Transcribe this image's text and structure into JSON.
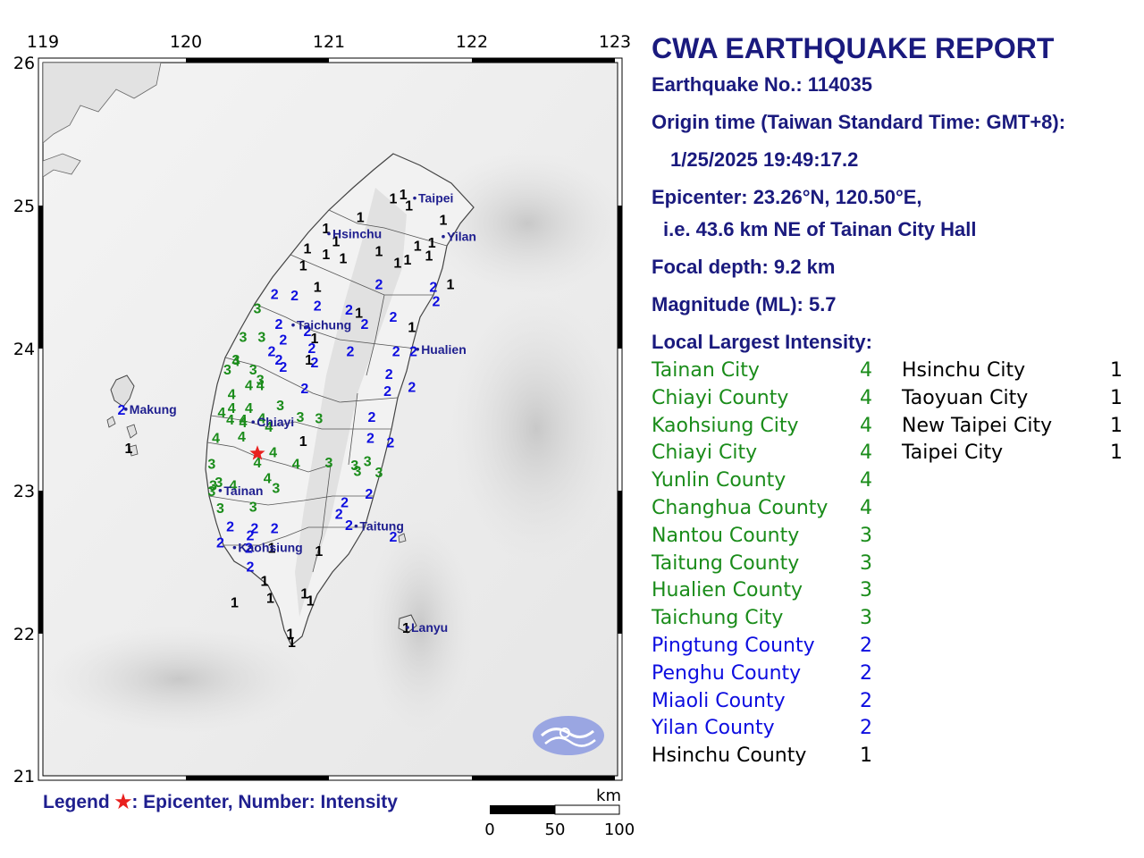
{
  "map": {
    "lon_labels": [
      "119",
      "120",
      "121",
      "122",
      "123"
    ],
    "lat_labels": [
      "26",
      "25",
      "24",
      "23",
      "22",
      "21"
    ],
    "cities": [
      {
        "name": "Taipei",
        "lon": 121.6,
        "lat": 25.05
      },
      {
        "name": "Hsinchu",
        "lon": 121.0,
        "lat": 24.8
      },
      {
        "name": "Yilan",
        "lon": 121.8,
        "lat": 24.78
      },
      {
        "name": "Taichung",
        "lon": 120.75,
        "lat": 24.16
      },
      {
        "name": "Hualien",
        "lon": 121.62,
        "lat": 23.99
      },
      {
        "name": "Makung",
        "lon": 119.58,
        "lat": 23.57
      },
      {
        "name": "Chiayi",
        "lon": 120.47,
        "lat": 23.48
      },
      {
        "name": "Tainan",
        "lon": 120.24,
        "lat": 23.0
      },
      {
        "name": "Taitung",
        "lon": 121.19,
        "lat": 22.75
      },
      {
        "name": "Kaohsiung",
        "lon": 120.34,
        "lat": 22.6
      },
      {
        "name": "Lanyu",
        "lon": 121.55,
        "lat": 22.04
      }
    ],
    "epicenter": {
      "lon": 120.5,
      "lat": 23.26
    },
    "stations": [
      {
        "v": "1",
        "lon": 121.45,
        "lat": 25.05
      },
      {
        "v": "1",
        "lon": 121.52,
        "lat": 25.08
      },
      {
        "v": "1",
        "lon": 121.56,
        "lat": 25.0
      },
      {
        "v": "1",
        "lon": 121.22,
        "lat": 24.92
      },
      {
        "v": "1",
        "lon": 120.98,
        "lat": 24.84
      },
      {
        "v": "1",
        "lon": 121.05,
        "lat": 24.75
      },
      {
        "v": "1",
        "lon": 121.8,
        "lat": 24.9
      },
      {
        "v": "1",
        "lon": 121.62,
        "lat": 24.72
      },
      {
        "v": "1",
        "lon": 121.72,
        "lat": 24.74
      },
      {
        "v": "1",
        "lon": 120.85,
        "lat": 24.7
      },
      {
        "v": "1",
        "lon": 120.98,
        "lat": 24.66
      },
      {
        "v": "1",
        "lon": 121.1,
        "lat": 24.63
      },
      {
        "v": "1",
        "lon": 121.35,
        "lat": 24.68
      },
      {
        "v": "1",
        "lon": 121.48,
        "lat": 24.6
      },
      {
        "v": "1",
        "lon": 121.55,
        "lat": 24.62
      },
      {
        "v": "1",
        "lon": 121.7,
        "lat": 24.65
      },
      {
        "v": "1",
        "lon": 120.82,
        "lat": 24.58
      },
      {
        "v": "1",
        "lon": 120.92,
        "lat": 24.43
      },
      {
        "v": "1",
        "lon": 121.85,
        "lat": 24.45
      },
      {
        "v": "1",
        "lon": 121.21,
        "lat": 24.25
      },
      {
        "v": "1",
        "lon": 121.58,
        "lat": 24.15
      },
      {
        "v": "1",
        "lon": 120.9,
        "lat": 24.07
      },
      {
        "v": "1",
        "lon": 120.86,
        "lat": 23.92
      },
      {
        "v": "1",
        "lon": 120.82,
        "lat": 23.35
      },
      {
        "v": "1",
        "lon": 120.6,
        "lat": 22.6
      },
      {
        "v": "1",
        "lon": 120.93,
        "lat": 22.58
      },
      {
        "v": "1",
        "lon": 120.55,
        "lat": 22.37
      },
      {
        "v": "1",
        "lon": 120.59,
        "lat": 22.25
      },
      {
        "v": "1",
        "lon": 120.83,
        "lat": 22.28
      },
      {
        "v": "1",
        "lon": 120.87,
        "lat": 22.23
      },
      {
        "v": "1",
        "lon": 120.34,
        "lat": 22.22
      },
      {
        "v": "1",
        "lon": 120.73,
        "lat": 22.0
      },
      {
        "v": "1",
        "lon": 120.74,
        "lat": 21.94
      },
      {
        "v": "1",
        "lon": 121.54,
        "lat": 22.04
      },
      {
        "v": "1",
        "lon": 119.6,
        "lat": 23.3
      },
      {
        "v": "2",
        "lon": 121.35,
        "lat": 24.45
      },
      {
        "v": "2",
        "lon": 121.73,
        "lat": 24.43
      },
      {
        "v": "2",
        "lon": 121.75,
        "lat": 24.33
      },
      {
        "v": "2",
        "lon": 120.62,
        "lat": 24.38
      },
      {
        "v": "2",
        "lon": 120.76,
        "lat": 24.37
      },
      {
        "v": "2",
        "lon": 120.92,
        "lat": 24.3
      },
      {
        "v": "2",
        "lon": 121.14,
        "lat": 24.27
      },
      {
        "v": "2",
        "lon": 121.45,
        "lat": 24.22
      },
      {
        "v": "2",
        "lon": 120.65,
        "lat": 24.17
      },
      {
        "v": "2",
        "lon": 120.85,
        "lat": 24.12
      },
      {
        "v": "2",
        "lon": 121.25,
        "lat": 24.17
      },
      {
        "v": "2",
        "lon": 120.68,
        "lat": 24.06
      },
      {
        "v": "2",
        "lon": 120.88,
        "lat": 24.0
      },
      {
        "v": "2",
        "lon": 120.6,
        "lat": 23.98
      },
      {
        "v": "2",
        "lon": 121.15,
        "lat": 23.98
      },
      {
        "v": "2",
        "lon": 121.47,
        "lat": 23.98
      },
      {
        "v": "2",
        "lon": 121.59,
        "lat": 23.98
      },
      {
        "v": "2",
        "lon": 120.65,
        "lat": 23.92
      },
      {
        "v": "2",
        "lon": 120.9,
        "lat": 23.9
      },
      {
        "v": "2",
        "lon": 120.68,
        "lat": 23.87
      },
      {
        "v": "2",
        "lon": 121.42,
        "lat": 23.82
      },
      {
        "v": "2",
        "lon": 121.58,
        "lat": 23.73
      },
      {
        "v": "2",
        "lon": 120.83,
        "lat": 23.72
      },
      {
        "v": "2",
        "lon": 121.41,
        "lat": 23.7
      },
      {
        "v": "2",
        "lon": 121.3,
        "lat": 23.52
      },
      {
        "v": "2",
        "lon": 121.29,
        "lat": 23.37
      },
      {
        "v": "2",
        "lon": 121.43,
        "lat": 23.34
      },
      {
        "v": "2",
        "lon": 121.28,
        "lat": 22.98
      },
      {
        "v": "2",
        "lon": 121.11,
        "lat": 22.92
      },
      {
        "v": "2",
        "lon": 121.07,
        "lat": 22.84
      },
      {
        "v": "2",
        "lon": 121.14,
        "lat": 22.76
      },
      {
        "v": "2",
        "lon": 121.45,
        "lat": 22.68
      },
      {
        "v": "2",
        "lon": 120.31,
        "lat": 22.75
      },
      {
        "v": "2",
        "lon": 120.48,
        "lat": 22.74
      },
      {
        "v": "2",
        "lon": 120.62,
        "lat": 22.74
      },
      {
        "v": "2",
        "lon": 120.45,
        "lat": 22.69
      },
      {
        "v": "2",
        "lon": 120.24,
        "lat": 22.64
      },
      {
        "v": "2",
        "lon": 120.44,
        "lat": 22.6
      },
      {
        "v": "2",
        "lon": 120.45,
        "lat": 22.47
      },
      {
        "v": "2",
        "lon": 119.55,
        "lat": 23.57
      },
      {
        "v": "3",
        "lon": 120.5,
        "lat": 24.28
      },
      {
        "v": "3",
        "lon": 120.4,
        "lat": 24.08
      },
      {
        "v": "3",
        "lon": 120.53,
        "lat": 24.08
      },
      {
        "v": "3",
        "lon": 120.35,
        "lat": 23.92
      },
      {
        "v": "3",
        "lon": 120.29,
        "lat": 23.85
      },
      {
        "v": "3",
        "lon": 120.47,
        "lat": 23.85
      },
      {
        "v": "3",
        "lon": 120.52,
        "lat": 23.78
      },
      {
        "v": "3",
        "lon": 120.66,
        "lat": 23.6
      },
      {
        "v": "3",
        "lon": 120.8,
        "lat": 23.52
      },
      {
        "v": "3",
        "lon": 120.93,
        "lat": 23.51
      },
      {
        "v": "3",
        "lon": 121.0,
        "lat": 23.2
      },
      {
        "v": "3",
        "lon": 121.18,
        "lat": 23.18
      },
      {
        "v": "3",
        "lon": 121.27,
        "lat": 23.21
      },
      {
        "v": "3",
        "lon": 121.2,
        "lat": 23.14
      },
      {
        "v": "3",
        "lon": 121.35,
        "lat": 23.13
      },
      {
        "v": "3",
        "lon": 120.18,
        "lat": 23.19
      },
      {
        "v": "3",
        "lon": 120.19,
        "lat": 23.04
      },
      {
        "v": "3",
        "lon": 120.23,
        "lat": 23.06
      },
      {
        "v": "3",
        "lon": 120.18,
        "lat": 23.0
      },
      {
        "v": "3",
        "lon": 120.63,
        "lat": 23.02
      },
      {
        "v": "3",
        "lon": 120.47,
        "lat": 22.89
      },
      {
        "v": "3",
        "lon": 120.24,
        "lat": 22.88
      },
      {
        "v": "4",
        "lon": 120.35,
        "lat": 23.91
      },
      {
        "v": "4",
        "lon": 120.44,
        "lat": 23.74
      },
      {
        "v": "4",
        "lon": 120.52,
        "lat": 23.74
      },
      {
        "v": "4",
        "lon": 120.32,
        "lat": 23.68
      },
      {
        "v": "4",
        "lon": 120.32,
        "lat": 23.58
      },
      {
        "v": "4",
        "lon": 120.44,
        "lat": 23.58
      },
      {
        "v": "4",
        "lon": 120.25,
        "lat": 23.55
      },
      {
        "v": "4",
        "lon": 120.4,
        "lat": 23.5
      },
      {
        "v": "4",
        "lon": 120.31,
        "lat": 23.5
      },
      {
        "v": "4",
        "lon": 120.4,
        "lat": 23.48
      },
      {
        "v": "4",
        "lon": 120.58,
        "lat": 23.45
      },
      {
        "v": "4",
        "lon": 120.53,
        "lat": 23.51
      },
      {
        "v": "4",
        "lon": 120.21,
        "lat": 23.37
      },
      {
        "v": "4",
        "lon": 120.39,
        "lat": 23.38
      },
      {
        "v": "4",
        "lon": 120.61,
        "lat": 23.27
      },
      {
        "v": "4",
        "lon": 120.5,
        "lat": 23.2
      },
      {
        "v": "4",
        "lon": 120.77,
        "lat": 23.19
      },
      {
        "v": "4",
        "lon": 120.57,
        "lat": 23.09
      },
      {
        "v": "4",
        "lon": 120.33,
        "lat": 23.04
      }
    ],
    "legend": {
      "prefix": "Legend ",
      "star": "★",
      "suffix": ": Epicenter, Number: Intensity"
    },
    "scale": {
      "unit": "km",
      "ticks": [
        "0",
        "50",
        "100"
      ]
    },
    "colors": {
      "i1": "#000000",
      "i2": "#0d0de0",
      "i3": "#1a8c1a",
      "i4": "#1a8c1a",
      "epicenter": "#e8201e",
      "label": "#1f1f8f"
    }
  },
  "report": {
    "title": "CWA EARTHQUAKE REPORT",
    "number": "Earthquake No.: 114035",
    "origin_label": "Origin time (Taiwan Standard Time: GMT+8):",
    "origin_value": "1/25/2025 19:49:17.2",
    "epicenter_label": "Epicenter: 23.26°N, 120.50°E,",
    "epicenter_desc": "i.e. 43.6 km NE of Tainan City Hall",
    "depth": "Focal depth: 9.2 km",
    "magnitude": "Magnitude (ML): 5.7",
    "intensity_header": "Local Largest Intensity:",
    "intensity_left": [
      {
        "name": "Tainan City",
        "level": "4",
        "color": "#1a8c1a"
      },
      {
        "name": "Chiayi County",
        "level": "4",
        "color": "#1a8c1a"
      },
      {
        "name": "Kaohsiung City",
        "level": "4",
        "color": "#1a8c1a"
      },
      {
        "name": "Chiayi City",
        "level": "4",
        "color": "#1a8c1a"
      },
      {
        "name": "Yunlin County",
        "level": "4",
        "color": "#1a8c1a"
      },
      {
        "name": "Changhua County",
        "level": "4",
        "color": "#1a8c1a"
      },
      {
        "name": "Nantou County",
        "level": "3",
        "color": "#1a8c1a"
      },
      {
        "name": "Taitung County",
        "level": "3",
        "color": "#1a8c1a"
      },
      {
        "name": "Hualien County",
        "level": "3",
        "color": "#1a8c1a"
      },
      {
        "name": "Taichung City",
        "level": "3",
        "color": "#1a8c1a"
      },
      {
        "name": "Pingtung County",
        "level": "2",
        "color": "#0d0de0"
      },
      {
        "name": "Penghu County",
        "level": "2",
        "color": "#0d0de0"
      },
      {
        "name": "Miaoli County",
        "level": "2",
        "color": "#0d0de0"
      },
      {
        "name": "Yilan County",
        "level": "2",
        "color": "#0d0de0"
      },
      {
        "name": "Hsinchu County",
        "level": "1",
        "color": "#000000"
      }
    ],
    "intensity_right": [
      {
        "name": "Hsinchu City",
        "level": "1",
        "color": "#000000"
      },
      {
        "name": "Taoyuan City",
        "level": "1",
        "color": "#000000"
      },
      {
        "name": "New Taipei City",
        "level": "1",
        "color": "#000000"
      },
      {
        "name": "Taipei City",
        "level": "1",
        "color": "#000000"
      }
    ]
  }
}
